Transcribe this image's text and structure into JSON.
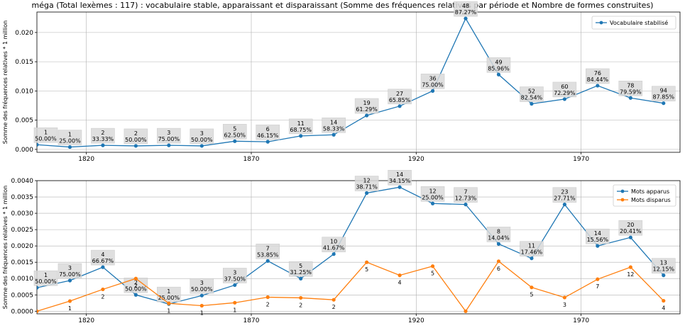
{
  "title": "méga (Total lexèmes : 117) : vocabulaire stable, apparaissant et disparaissant (Somme des fréquences relatives par période et Nombre de formes construites)",
  "chart_data": [
    {
      "type": "line",
      "ylabel": "Somme des fréquences relatives * 1 million",
      "xlim": [
        1805,
        2000
      ],
      "ylim": [
        -0.0005,
        0.0235
      ],
      "xticks": [
        1820,
        1870,
        1920,
        1970
      ],
      "yticks": [
        0.0,
        0.005,
        0.01,
        0.015,
        0.02
      ],
      "ytick_labels": [
        "0.000",
        "0.005",
        "0.010",
        "0.015",
        "0.020"
      ],
      "grid": true,
      "legend": "top-right",
      "colors": {
        "stab": "#1f77b4"
      },
      "series": [
        {
          "name": "Vocabulaire stabilisé",
          "x": [
            1805,
            1815,
            1825,
            1835,
            1845,
            1855,
            1865,
            1875,
            1885,
            1895,
            1905,
            1915,
            1925,
            1935,
            1945,
            1955,
            1965,
            1975,
            1985,
            1995
          ],
          "values": [
            0.0008,
            0.0004,
            0.0007,
            0.0006,
            0.0007,
            0.0006,
            0.0014,
            0.0013,
            0.0023,
            0.0025,
            0.0058,
            0.0074,
            0.01,
            0.0224,
            0.0128,
            0.0078,
            0.0086,
            0.0109,
            0.0088,
            0.0079
          ],
          "labels": [
            [
              "1",
              "50.00%"
            ],
            [
              "1",
              "25.00%"
            ],
            [
              "2",
              "33.33%"
            ],
            [
              "2",
              "50.00%"
            ],
            [
              "3",
              "75.00%"
            ],
            [
              "3",
              "50.00%"
            ],
            [
              "5",
              "62.50%"
            ],
            [
              "6",
              "46.15%"
            ],
            [
              "11",
              "68.75%"
            ],
            [
              "14",
              "58.33%"
            ],
            [
              "19",
              "61.29%"
            ],
            [
              "27",
              "65.85%"
            ],
            [
              "36",
              "75.00%"
            ],
            [
              "48",
              "87.27%"
            ],
            [
              "49",
              "85.96%"
            ],
            [
              "52",
              "82.54%"
            ],
            [
              "60",
              "72.29%"
            ],
            [
              "76",
              "84.44%"
            ],
            [
              "78",
              "79.59%"
            ],
            [
              "94",
              "87.85%"
            ]
          ]
        }
      ]
    },
    {
      "type": "line",
      "ylabel": "Somme des fréquences relatives * 1 million",
      "xlim": [
        1805,
        2000
      ],
      "ylim": [
        -8e-05,
        0.004
      ],
      "xticks": [
        1820,
        1870,
        1920,
        1970
      ],
      "yticks": [
        0.0,
        0.0005,
        0.001,
        0.0015,
        0.002,
        0.0025,
        0.003,
        0.0035,
        0.004
      ],
      "ytick_labels": [
        "0.0000",
        "0.0005",
        "0.0010",
        "0.0015",
        "0.0020",
        "0.0025",
        "0.0030",
        "0.0035",
        "0.0040"
      ],
      "grid": true,
      "legend": "top-right",
      "colors": {
        "app": "#1f77b4",
        "dis": "#ff7f0e"
      },
      "series": [
        {
          "name": "Mots apparus",
          "x": [
            1805,
            1815,
            1825,
            1835,
            1845,
            1855,
            1865,
            1875,
            1885,
            1895,
            1905,
            1915,
            1925,
            1935,
            1945,
            1955,
            1965,
            1975,
            1985,
            1995
          ],
          "values": [
            0.00072,
            0.00094,
            0.00135,
            0.0005,
            0.00022,
            0.00048,
            0.0008,
            0.00154,
            0.001,
            0.00175,
            0.00362,
            0.0038,
            0.0033,
            0.00327,
            0.00206,
            0.00162,
            0.00327,
            0.002,
            0.00226,
            0.0011
          ],
          "labels": [
            [
              "1",
              "50.00%"
            ],
            [
              "3",
              "75.00%"
            ],
            [
              "4",
              "66.67%"
            ],
            [
              "2",
              "50.00%"
            ],
            [
              "1",
              "25.00%"
            ],
            [
              "3",
              "50.00%"
            ],
            [
              "3",
              "37.50%"
            ],
            [
              "7",
              "53.85%"
            ],
            [
              "5",
              "31.25%"
            ],
            [
              "10",
              "41.67%"
            ],
            [
              "12",
              "38.71%"
            ],
            [
              "14",
              "34.15%"
            ],
            [
              "12",
              "25.00%"
            ],
            [
              "7",
              "12.73%"
            ],
            [
              "8",
              "14.04%"
            ],
            [
              "11",
              "17.46%"
            ],
            [
              "23",
              "27.71%"
            ],
            [
              "14",
              "15.56%"
            ],
            [
              "20",
              "20.41%"
            ],
            [
              "13",
              "12.15%"
            ]
          ]
        },
        {
          "name": "Mots disparus",
          "x": [
            1805,
            1815,
            1825,
            1835,
            1845,
            1855,
            1865,
            1875,
            1885,
            1895,
            1905,
            1915,
            1925,
            1935,
            1945,
            1955,
            1965,
            1975,
            1985,
            1995
          ],
          "values": [
            0.0,
            0.00031,
            0.00067,
            0.001,
            0.00024,
            0.00017,
            0.00026,
            0.00043,
            0.00041,
            0.00035,
            0.0015,
            0.0011,
            0.00138,
            0.0,
            0.00153,
            0.00073,
            0.00042,
            0.00098,
            0.00135,
            0.00032
          ],
          "labels": [
            "",
            "1",
            "2",
            "2",
            "1",
            "1",
            "1",
            "2",
            "2",
            "2",
            "5",
            "4",
            "5",
            "",
            "6",
            "5",
            "3",
            "7",
            "12",
            "4"
          ]
        }
      ]
    }
  ]
}
